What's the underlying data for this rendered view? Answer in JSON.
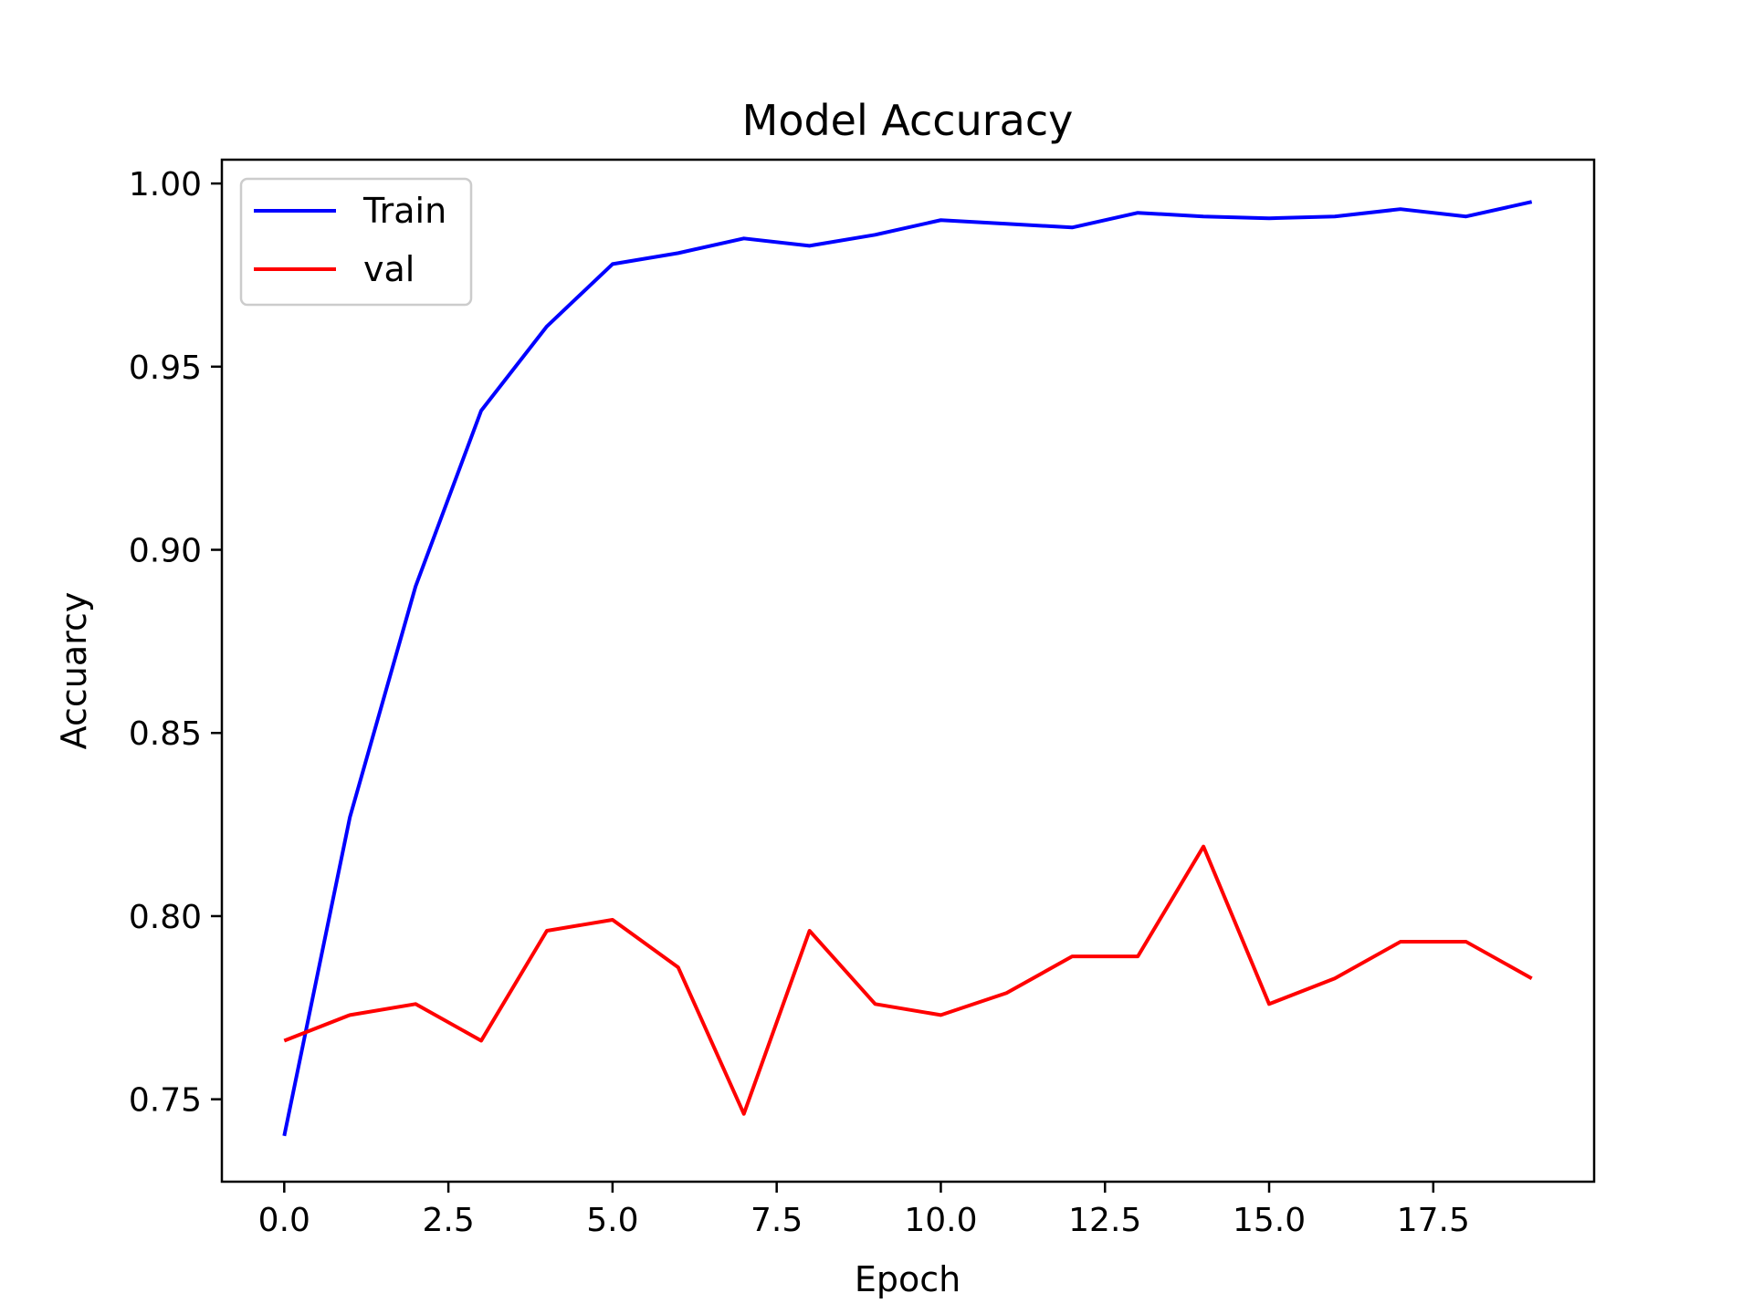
{
  "chart_data": {
    "type": "line",
    "title": "Model Accuracy",
    "xlabel": "Epoch",
    "ylabel": "Accuarcy",
    "xlim": [
      -0.95,
      19.95
    ],
    "ylim": [
      0.7275,
      1.0065
    ],
    "xticks": [
      0.0,
      2.5,
      5.0,
      7.5,
      10.0,
      12.5,
      15.0,
      17.5
    ],
    "xtick_labels": [
      "0.0",
      "2.5",
      "5.0",
      "7.5",
      "10.0",
      "12.5",
      "15.0",
      "17.5"
    ],
    "yticks": [
      0.75,
      0.8,
      0.85,
      0.9,
      0.95,
      1.0
    ],
    "ytick_labels": [
      "0.75",
      "0.80",
      "0.85",
      "0.90",
      "0.95",
      "1.00"
    ],
    "grid": false,
    "legend_position": "upper-left",
    "x": [
      0,
      1,
      2,
      3,
      4,
      5,
      6,
      7,
      8,
      9,
      10,
      11,
      12,
      13,
      14,
      15,
      16,
      17,
      18,
      19
    ],
    "series": [
      {
        "name": "Train",
        "color": "#0000ff",
        "values": [
          0.74,
          0.827,
          0.89,
          0.938,
          0.961,
          0.978,
          0.981,
          0.985,
          0.983,
          0.986,
          0.99,
          0.989,
          0.988,
          0.992,
          0.991,
          0.9905,
          0.991,
          0.993,
          0.991,
          0.995
        ]
      },
      {
        "name": "val",
        "color": "#ff0000",
        "values": [
          0.766,
          0.773,
          0.776,
          0.766,
          0.796,
          0.799,
          0.786,
          0.746,
          0.796,
          0.776,
          0.773,
          0.779,
          0.789,
          0.789,
          0.819,
          0.776,
          0.783,
          0.793,
          0.793,
          0.783
        ]
      }
    ]
  }
}
